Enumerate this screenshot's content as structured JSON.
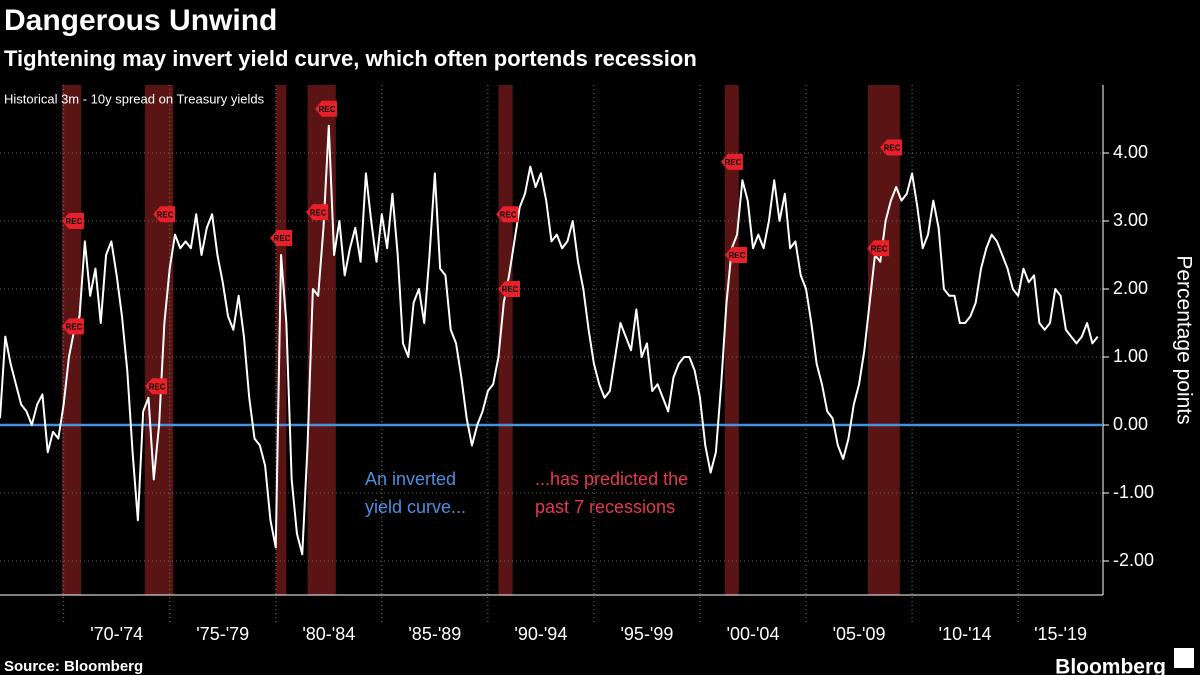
{
  "chart_data": {
    "type": "line",
    "title": "Dangerous Unwind",
    "subtitle": "Tightening may invert yield curve, which often portends recession",
    "note": "Historical 3m - 10y spread on Treasury yields",
    "y_label": "Percentage points",
    "source": "Source: Bloomberg",
    "brand": "Bloomberg",
    "color": "#ffffff",
    "zero_line_color": "#4a90e2",
    "recession_color": "#5a1414",
    "marker_color": "#e8202a",
    "grid": true,
    "xlim": [
      1967,
      2019
    ],
    "ylim": [
      -2.5,
      5
    ],
    "yticks": [
      {
        "value": 4,
        "label": "4.00"
      },
      {
        "value": 3,
        "label": "3.00"
      },
      {
        "value": 2,
        "label": "2.00"
      },
      {
        "value": 1,
        "label": "1.00"
      },
      {
        "value": 0,
        "label": "0.00"
      },
      {
        "value": -1,
        "label": "-1.00"
      },
      {
        "value": -2,
        "label": "-2.00"
      }
    ],
    "xgrid": [
      1970,
      1975,
      1980,
      1985,
      1990,
      1995,
      2000,
      2005,
      2010,
      2015
    ],
    "xticks": [
      {
        "value": 1972.5,
        "label": "'70-'74"
      },
      {
        "value": 1977.5,
        "label": "'75-'79"
      },
      {
        "value": 1982.5,
        "label": "'80-'84"
      },
      {
        "value": 1987.5,
        "label": "'85-'89"
      },
      {
        "value": 1992.5,
        "label": "'90-'94"
      },
      {
        "value": 1997.5,
        "label": "'95-'99"
      },
      {
        "value": 2002.5,
        "label": "'00-'04"
      },
      {
        "value": 2007.5,
        "label": "'05-'09"
      },
      {
        "value": 2012.5,
        "label": "'10-'14"
      },
      {
        "value": 2017,
        "label": "'15-'19"
      }
    ],
    "recessions": [
      {
        "start": 1969.92,
        "end": 1970.83
      },
      {
        "start": 1973.83,
        "end": 1975.17
      },
      {
        "start": 1980.0,
        "end": 1980.5
      },
      {
        "start": 1981.5,
        "end": 1982.83
      },
      {
        "start": 1990.5,
        "end": 1991.17
      },
      {
        "start": 2001.17,
        "end": 2001.83
      },
      {
        "start": 2007.92,
        "end": 2009.42
      }
    ],
    "rec_label": "REC",
    "rec_markers": [
      {
        "x": 1970.39,
        "y": 3.0
      },
      {
        "x": 1970.39,
        "y": 1.45
      },
      {
        "x": 1974.31,
        "y": 0.57
      },
      {
        "x": 1974.69,
        "y": 3.1
      },
      {
        "x": 1980.2,
        "y": 2.75
      },
      {
        "x": 1981.9,
        "y": 3.13
      },
      {
        "x": 1982.32,
        "y": 4.65
      },
      {
        "x": 1990.86,
        "y": 3.1
      },
      {
        "x": 1990.95,
        "y": 2.0
      },
      {
        "x": 2001.46,
        "y": 3.87
      },
      {
        "x": 2001.65,
        "y": 2.5
      },
      {
        "x": 2008.35,
        "y": 2.6
      },
      {
        "x": 2008.96,
        "y": 4.08
      }
    ],
    "annotations": [
      {
        "lines": [
          "An inverted",
          "yield curve..."
        ],
        "color": "#4a90e2"
      },
      {
        "lines": [
          "...has predicted the",
          "past 7 recessions"
        ],
        "color": "#e8384f"
      }
    ],
    "x": [
      1967,
      1967.25,
      1967.5,
      1967.75,
      1968,
      1968.25,
      1968.5,
      1968.75,
      1969,
      1969.25,
      1969.5,
      1969.75,
      1970,
      1970.25,
      1970.5,
      1970.75,
      1971,
      1971.25,
      1971.5,
      1971.75,
      1972,
      1972.25,
      1972.5,
      1972.75,
      1973,
      1973.25,
      1973.5,
      1973.75,
      1974,
      1974.25,
      1974.5,
      1974.75,
      1975,
      1975.25,
      1975.5,
      1975.75,
      1976,
      1976.25,
      1976.5,
      1976.75,
      1977,
      1977.25,
      1977.5,
      1977.75,
      1978,
      1978.25,
      1978.5,
      1978.75,
      1979,
      1979.25,
      1979.5,
      1979.75,
      1980,
      1980.25,
      1980.5,
      1980.75,
      1981,
      1981.25,
      1981.5,
      1981.75,
      1982,
      1982.25,
      1982.5,
      1982.75,
      1983,
      1983.25,
      1983.5,
      1983.75,
      1984,
      1984.25,
      1984.5,
      1984.75,
      1985,
      1985.25,
      1985.5,
      1985.75,
      1986,
      1986.25,
      1986.5,
      1986.75,
      1987,
      1987.25,
      1987.5,
      1987.75,
      1988,
      1988.25,
      1988.5,
      1988.75,
      1989,
      1989.25,
      1989.5,
      1989.75,
      1990,
      1990.25,
      1990.5,
      1990.75,
      1991,
      1991.25,
      1991.5,
      1991.75,
      1992,
      1992.25,
      1992.5,
      1992.75,
      1993,
      1993.25,
      1993.5,
      1993.75,
      1994,
      1994.25,
      1994.5,
      1994.75,
      1995,
      1995.25,
      1995.5,
      1995.75,
      1996,
      1996.25,
      1996.5,
      1996.75,
      1997,
      1997.25,
      1997.5,
      1997.75,
      1998,
      1998.25,
      1998.5,
      1998.75,
      1999,
      1999.25,
      1999.5,
      1999.75,
      2000,
      2000.25,
      2000.5,
      2000.75,
      2001,
      2001.25,
      2001.5,
      2001.75,
      2002,
      2002.25,
      2002.5,
      2002.75,
      2003,
      2003.25,
      2003.5,
      2003.75,
      2004,
      2004.25,
      2004.5,
      2004.75,
      2005,
      2005.25,
      2005.5,
      2005.75,
      2006,
      2006.25,
      2006.5,
      2006.75,
      2007,
      2007.25,
      2007.5,
      2007.75,
      2008,
      2008.25,
      2008.5,
      2008.75,
      2009,
      2009.25,
      2009.5,
      2009.75,
      2010,
      2010.25,
      2010.5,
      2010.75,
      2011,
      2011.25,
      2011.5,
      2011.75,
      2012,
      2012.25,
      2012.5,
      2012.75,
      2013,
      2013.25,
      2013.5,
      2013.75,
      2014,
      2014.25,
      2014.5,
      2014.75,
      2015,
      2015.25,
      2015.5,
      2015.75,
      2016,
      2016.25,
      2016.5,
      2016.75,
      2017,
      2017.25,
      2017.5,
      2017.75,
      2018,
      2018.25,
      2018.5,
      2018.75
    ],
    "values": [
      0.1,
      1.3,
      0.9,
      0.6,
      0.3,
      0.2,
      0.0,
      0.3,
      0.45,
      -0.4,
      -0.1,
      -0.2,
      0.3,
      1.0,
      1.4,
      1.6,
      2.7,
      1.9,
      2.3,
      1.5,
      2.5,
      2.7,
      2.2,
      1.6,
      0.8,
      -0.4,
      -1.4,
      0.2,
      0.4,
      -0.8,
      0.0,
      1.5,
      2.3,
      2.8,
      2.6,
      2.7,
      2.6,
      3.1,
      2.5,
      2.9,
      3.1,
      2.5,
      2.1,
      1.6,
      1.4,
      1.9,
      1.3,
      0.4,
      -0.2,
      -0.3,
      -0.6,
      -1.4,
      -1.8,
      2.5,
      1.5,
      -0.8,
      -1.6,
      -1.9,
      -0.3,
      2.0,
      1.9,
      2.9,
      4.4,
      2.5,
      3.0,
      2.2,
      2.6,
      2.9,
      2.4,
      3.7,
      3.0,
      2.4,
      3.1,
      2.6,
      3.4,
      2.5,
      1.2,
      1.0,
      1.8,
      2.0,
      1.5,
      2.5,
      3.7,
      2.3,
      2.2,
      1.4,
      1.2,
      0.7,
      0.1,
      -0.3,
      0.0,
      0.2,
      0.5,
      0.6,
      1.0,
      1.8,
      2.2,
      2.7,
      3.2,
      3.4,
      3.8,
      3.5,
      3.7,
      3.3,
      2.7,
      2.8,
      2.6,
      2.7,
      3.0,
      2.4,
      2.0,
      1.4,
      0.9,
      0.6,
      0.4,
      0.5,
      1.0,
      1.5,
      1.3,
      1.1,
      1.7,
      1.0,
      1.2,
      0.5,
      0.6,
      0.4,
      0.2,
      0.7,
      0.9,
      1.0,
      1.0,
      0.8,
      0.4,
      -0.3,
      -0.7,
      -0.4,
      0.6,
      1.8,
      2.6,
      2.8,
      3.6,
      3.3,
      2.6,
      2.8,
      2.6,
      3.0,
      3.6,
      3.0,
      3.4,
      2.6,
      2.7,
      2.2,
      2.0,
      1.5,
      0.9,
      0.6,
      0.2,
      0.1,
      -0.3,
      -0.5,
      -0.2,
      0.3,
      0.6,
      1.1,
      1.8,
      2.5,
      2.4,
      3.0,
      3.3,
      3.5,
      3.3,
      3.4,
      3.7,
      3.2,
      2.6,
      2.8,
      3.3,
      2.9,
      2.0,
      1.9,
      1.9,
      1.5,
      1.5,
      1.6,
      1.8,
      2.3,
      2.6,
      2.8,
      2.7,
      2.5,
      2.3,
      2.0,
      1.9,
      2.3,
      2.1,
      2.2,
      1.5,
      1.4,
      1.5,
      2.0,
      1.9,
      1.4,
      1.3,
      1.2,
      1.3,
      1.5,
      1.2,
      1.3
    ]
  }
}
